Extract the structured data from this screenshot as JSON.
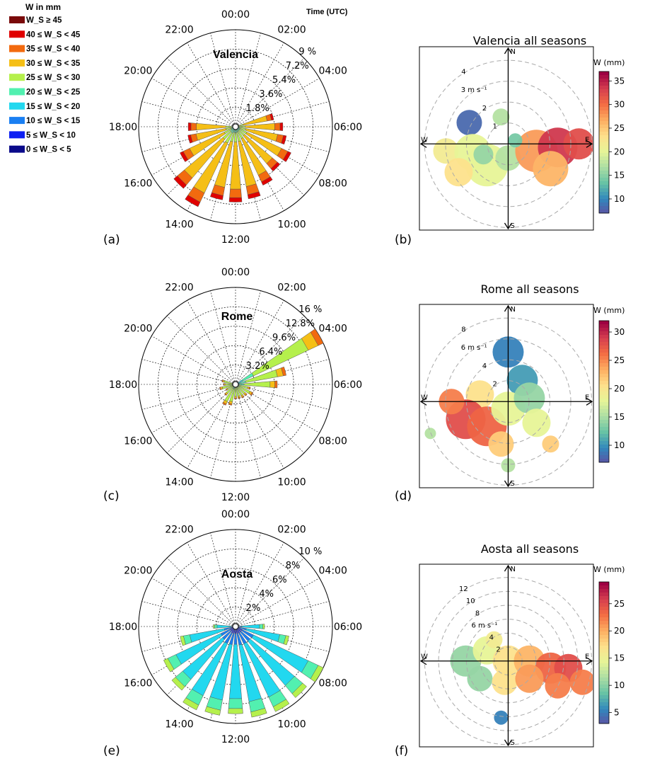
{
  "legend": {
    "title": "W in mm",
    "entries": [
      {
        "label": "W_S ≥ 45",
        "color": "#7a0a0a"
      },
      {
        "label": "40 ≤ W_S < 45",
        "color": "#e00000"
      },
      {
        "label": "35 ≤ W_S < 40",
        "color": "#f26a0f"
      },
      {
        "label": "30 ≤ W_S < 35",
        "color": "#f5bf16"
      },
      {
        "label": "25 ≤ W_S < 30",
        "color": "#b5f04c"
      },
      {
        "label": "20 ≤ W_S < 25",
        "color": "#52f0b0"
      },
      {
        "label": "15 ≤ W_S < 20",
        "color": "#22d8ef"
      },
      {
        "label": "10 ≤ W_S < 15",
        "color": "#1a7ff2"
      },
      {
        "label": "5 ≤ W_S < 10",
        "color": "#0c1ef2"
      },
      {
        "label": "0 ≤ W_S < 5",
        "color": "#0a0a8a"
      }
    ]
  },
  "time_label": "Time (UTC)",
  "hour_labels": [
    "00:00",
    "02:00",
    "04:00",
    "06:00",
    "08:00",
    "10:00",
    "12:00",
    "14:00",
    "16:00",
    "18:00",
    "20:00",
    "22:00"
  ],
  "chart_data": [
    {
      "type": "polar-bar",
      "panel": "(a)",
      "title": "Valencia",
      "radial_ticks": [
        "1.8%",
        "3.6%",
        "5.4%",
        "7.2%",
        "9 %"
      ],
      "rmax": 9,
      "hours": [
        18,
        17,
        16,
        15,
        14,
        13,
        12,
        11,
        10,
        9,
        8,
        7,
        6,
        5
      ],
      "frequency_pct": [
        4.4,
        4.5,
        5.7,
        7.5,
        8.2,
        6.9,
        7.0,
        6.8,
        6.0,
        5.4,
        5.7,
        4.8,
        4.4,
        3.6
      ],
      "dominant_class": "30 ≤ W_S < 35"
    },
    {
      "type": "heatmap-polar",
      "panel": "(b)",
      "title": "Valencia all seasons",
      "colorbar_label": "W (mm)",
      "colorbar_ticks": [
        10,
        15,
        20,
        25,
        30,
        35
      ],
      "cmin": 7,
      "cmax": 37,
      "ring_labels": [
        "1",
        "2",
        "3 m s⁻¹",
        "4"
      ],
      "ring_speeds": [
        1,
        2,
        3,
        4
      ],
      "compass": [
        "N",
        "E",
        "S",
        "W"
      ]
    },
    {
      "type": "polar-bar",
      "panel": "(c)",
      "title": "Rome",
      "radial_ticks": [
        "3.2%",
        "6.4%",
        "9.6%",
        "12.8%",
        "16 %"
      ],
      "rmax": 16,
      "hours": [
        18,
        19,
        17,
        16,
        15,
        14,
        13,
        12,
        11,
        10,
        9,
        8,
        7,
        6,
        5,
        4
      ],
      "frequency_pct": [
        2.0,
        2.3,
        2.7,
        1.8,
        2.4,
        3.8,
        3.5,
        2.4,
        2.4,
        2.5,
        2.5,
        3.2,
        2.5,
        6.9,
        8.5,
        16.0
      ],
      "dominant_class": "25 ≤ W_S < 30"
    },
    {
      "type": "heatmap-polar",
      "panel": "(d)",
      "title": "Rome all seasons",
      "colorbar_label": "W (mm)",
      "colorbar_ticks": [
        10,
        15,
        20,
        25,
        30
      ],
      "cmin": 7,
      "cmax": 32,
      "ring_labels": [
        "2",
        "4",
        "6 m s⁻¹",
        "8"
      ],
      "ring_speeds": [
        2,
        4,
        6,
        8
      ],
      "compass": [
        "N",
        "E",
        "S",
        "W"
      ]
    },
    {
      "type": "polar-bar",
      "panel": "(e)",
      "title": "Aosta",
      "radial_ticks": [
        "2%",
        "4%",
        "6%",
        "8%",
        "10 %"
      ],
      "rmax": 10,
      "hours": [
        18,
        17,
        16,
        15,
        14,
        13,
        12,
        11,
        10,
        9,
        8,
        7,
        6
      ],
      "frequency_pct": [
        2.3,
        5.8,
        8.2,
        8.6,
        9.5,
        9.3,
        9.0,
        9.5,
        9.7,
        9.6,
        10.0,
        5.6,
        3.0
      ],
      "dominant_class": "15 ≤ W_S < 20"
    },
    {
      "type": "heatmap-polar",
      "panel": "(f)",
      "title": "Aosta all seasons",
      "colorbar_label": "W (mm)",
      "colorbar_ticks": [
        5,
        10,
        15,
        20,
        25
      ],
      "cmin": 3,
      "cmax": 29,
      "ring_labels": [
        "2",
        "4",
        "6 m s⁻¹",
        "8",
        "10",
        "12"
      ],
      "ring_speeds": [
        2,
        4,
        6,
        8,
        10,
        12
      ],
      "compass": [
        "N",
        "E",
        "S",
        "W"
      ]
    }
  ]
}
